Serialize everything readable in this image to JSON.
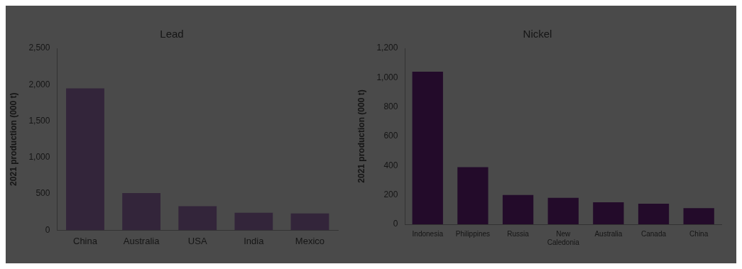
{
  "chart_data": [
    {
      "type": "bar",
      "title": "Lead",
      "ylabel": "2021 production (000 t)",
      "categories": [
        "China",
        "Australia",
        "USA",
        "India",
        "Mexico"
      ],
      "values": [
        1950,
        510,
        330,
        240,
        230
      ],
      "color": "#33253a",
      "ylim": [
        0,
        2500
      ],
      "yticks": [
        0,
        {
          "value": 500,
          "label": "500"
        },
        {
          "value": 1000,
          "label": "1,000"
        },
        {
          "value": 1500,
          "label": "1,500"
        },
        {
          "value": 2000,
          "label": "2,000"
        },
        {
          "value": 2500,
          "label": "2,500"
        }
      ],
      "grid": false,
      "legend": false
    },
    {
      "type": "bar",
      "title": "Nickel",
      "ylabel": "2021 production (000 t)",
      "categories": [
        "Indonesia",
        "Philippines",
        "Russia",
        "New Caledonia",
        "Australia",
        "Canada",
        "China"
      ],
      "values": [
        1040,
        390,
        200,
        180,
        150,
        140,
        110
      ],
      "color": "#230b2a",
      "ylim": [
        0,
        1200
      ],
      "yticks": [
        0,
        200,
        400,
        600,
        800,
        {
          "value": 1000,
          "label": "1,000"
        },
        {
          "value": 1200,
          "label": "1,200"
        }
      ],
      "grid": false,
      "legend": false
    }
  ]
}
